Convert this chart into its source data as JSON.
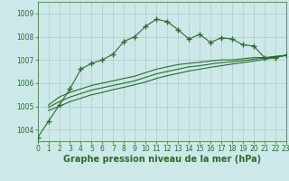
{
  "title": "Graphe pression niveau de la mer (hPa)",
  "background_color": "#cce8e8",
  "grid_color": "#aacccc",
  "line_color": "#2d6b2d",
  "x_min": 0,
  "x_max": 23,
  "y_min": 1003.5,
  "y_max": 1009.5,
  "y_ticks": [
    1004,
    1005,
    1006,
    1007,
    1008,
    1009
  ],
  "x_ticks": [
    0,
    1,
    2,
    3,
    4,
    5,
    6,
    7,
    8,
    9,
    10,
    11,
    12,
    13,
    14,
    15,
    16,
    17,
    18,
    19,
    20,
    21,
    22,
    23
  ],
  "series": [
    {
      "x": [
        0,
        1,
        2,
        3,
        4,
        5,
        6,
        7,
        8,
        9,
        10,
        11,
        12,
        13,
        14,
        15,
        16,
        17,
        18,
        19,
        20,
        21,
        22,
        23
      ],
      "y": [
        1003.65,
        1004.35,
        1005.05,
        1005.75,
        1006.6,
        1006.85,
        1007.0,
        1007.25,
        1007.8,
        1008.0,
        1008.45,
        1008.75,
        1008.65,
        1008.3,
        1007.9,
        1008.1,
        1007.75,
        1007.95,
        1007.9,
        1007.65,
        1007.6,
        1007.1,
        1007.1,
        1007.2
      ],
      "marker": "+",
      "linewidth": 0.8,
      "markersize": 4,
      "linestyle": "-"
    },
    {
      "x": [
        1,
        2,
        3,
        4,
        5,
        6,
        7,
        8,
        9,
        10,
        11,
        12,
        13,
        14,
        15,
        16,
        17,
        18,
        19,
        20,
        21,
        22,
        23
      ],
      "y": [
        1005.05,
        1005.4,
        1005.6,
        1005.75,
        1005.9,
        1006.0,
        1006.1,
        1006.2,
        1006.3,
        1006.45,
        1006.6,
        1006.7,
        1006.8,
        1006.85,
        1006.9,
        1006.95,
        1007.0,
        1007.0,
        1007.05,
        1007.1,
        1007.1,
        1007.15,
        1007.2
      ],
      "marker": null,
      "linewidth": 0.8,
      "markersize": 0,
      "linestyle": "-"
    },
    {
      "x": [
        1,
        2,
        3,
        4,
        5,
        6,
        7,
        8,
        9,
        10,
        11,
        12,
        13,
        14,
        15,
        16,
        17,
        18,
        19,
        20,
        21,
        22,
        23
      ],
      "y": [
        1004.95,
        1005.2,
        1005.4,
        1005.55,
        1005.7,
        1005.8,
        1005.9,
        1006.0,
        1006.1,
        1006.25,
        1006.4,
        1006.5,
        1006.6,
        1006.7,
        1006.75,
        1006.82,
        1006.88,
        1006.92,
        1006.97,
        1007.03,
        1007.08,
        1007.13,
        1007.2
      ],
      "marker": null,
      "linewidth": 0.8,
      "markersize": 0,
      "linestyle": "-"
    },
    {
      "x": [
        1,
        2,
        3,
        4,
        5,
        6,
        7,
        8,
        9,
        10,
        11,
        12,
        13,
        14,
        15,
        16,
        17,
        18,
        19,
        20,
        21,
        22,
        23
      ],
      "y": [
        1004.82,
        1005.0,
        1005.2,
        1005.35,
        1005.5,
        1005.6,
        1005.72,
        1005.82,
        1005.93,
        1006.05,
        1006.2,
        1006.32,
        1006.42,
        1006.52,
        1006.6,
        1006.68,
        1006.75,
        1006.82,
        1006.88,
        1006.95,
        1007.02,
        1007.1,
        1007.2
      ],
      "marker": null,
      "linewidth": 0.8,
      "markersize": 0,
      "linestyle": "-"
    }
  ],
  "title_fontsize": 7,
  "tick_fontsize": 5.5
}
